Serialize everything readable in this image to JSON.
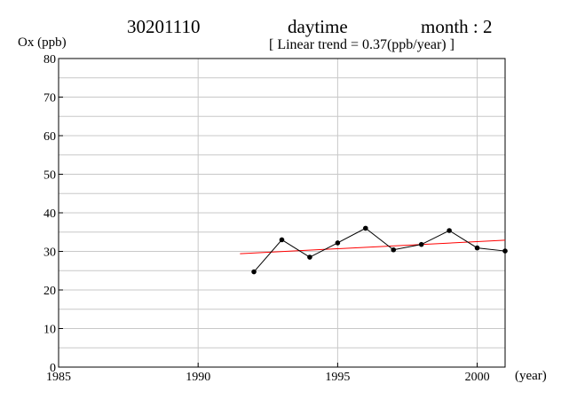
{
  "header": {
    "station": "30201110",
    "period": "daytime",
    "month_label": "month : 2",
    "trend_text": "[ Linear trend = 0.37(ppb/year) ]"
  },
  "chart_data": {
    "type": "line",
    "ylabel": "Ox (ppb)",
    "xlabel": "(year)",
    "xlim": [
      1985,
      2001
    ],
    "ylim": [
      0,
      80
    ],
    "x_ticks": [
      1985,
      1990,
      1995,
      2000
    ],
    "y_ticks": [
      0,
      10,
      20,
      30,
      40,
      50,
      60,
      70,
      80
    ],
    "grid": true,
    "series": [
      {
        "x": [
          1992,
          1993,
          1994,
          1995,
          1996,
          1997,
          1998,
          1999,
          2000,
          2001
        ],
        "values": [
          24.7,
          33.0,
          28.5,
          32.2,
          36.0,
          30.4,
          31.8,
          35.4,
          30.9,
          30.1
        ],
        "color": "#000000"
      }
    ],
    "trend_line": {
      "slope": 0.37,
      "x": [
        1991.5,
        2001
      ],
      "values": [
        29.4,
        32.9
      ],
      "color": "#ff0000"
    }
  }
}
